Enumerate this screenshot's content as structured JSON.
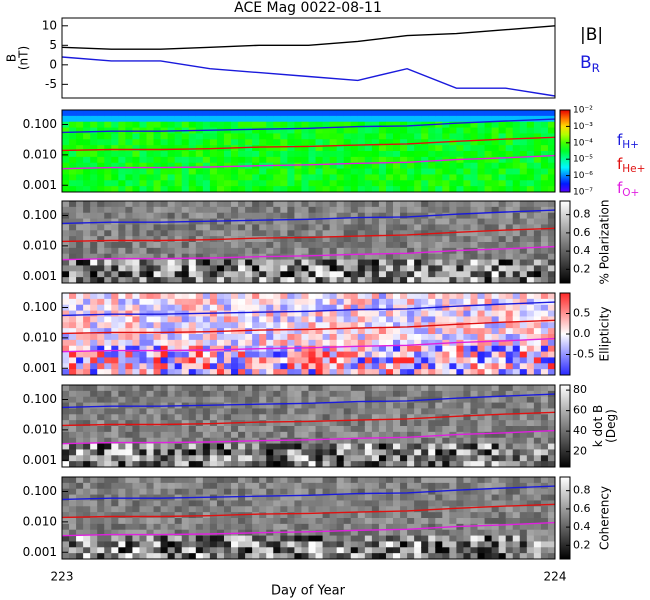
{
  "title": "ACE Mag 0022-08-11",
  "xlabel": "Day of Year",
  "chart_data": [
    {
      "type": "line",
      "ylabel": [
        "B",
        "(nT)"
      ],
      "x": [
        223,
        223.1,
        223.2,
        223.3,
        223.4,
        223.5,
        223.6,
        223.7,
        223.8,
        223.9,
        224
      ],
      "xlim": [
        223,
        224
      ],
      "xticks": [
        223,
        224
      ],
      "ylim": [
        -8.5,
        12
      ],
      "yticks": [
        -5,
        0,
        5,
        10
      ],
      "series": [
        {
          "name": "|B|",
          "color": "#000000",
          "values": [
            4.5,
            4,
            4,
            4.5,
            5,
            5,
            6,
            7.5,
            8,
            9,
            10
          ]
        },
        {
          "name": "B",
          "name_sub": "R",
          "color": "#1a1adc",
          "values": [
            2,
            1,
            1,
            -1,
            -2,
            -3,
            -4,
            -1,
            -6,
            -6,
            -8
          ]
        }
      ]
    },
    {
      "type": "spectrogram",
      "colormap": "rainbow",
      "x": [
        223,
        223.1,
        223.2,
        223.3,
        223.4,
        223.5,
        223.6,
        223.7,
        223.8,
        223.9,
        224
      ],
      "xlim": [
        223,
        224
      ],
      "log_y": true,
      "ylim": [
        0.0006,
        0.3
      ],
      "yticks": [
        {
          "value": 0.001,
          "label": "0.001"
        },
        {
          "value": 0.01,
          "label": "0.010"
        },
        {
          "value": 0.1,
          "label": "0.100"
        }
      ],
      "clim": [
        1e-07,
        0.01
      ],
      "log_c": true,
      "cticks": [
        {
          "value": 1e-07,
          "label": "10⁻⁷"
        },
        {
          "value": 1e-06,
          "label": "10⁻⁶"
        },
        {
          "value": 1e-05,
          "label": "10⁻⁵"
        },
        {
          "value": 0.0001,
          "label": "10⁻⁴"
        },
        {
          "value": 0.001,
          "label": "10⁻³"
        },
        {
          "value": 0.01,
          "label": "10⁻²"
        }
      ],
      "series": [
        {
          "name": "f",
          "name_sub": "H+",
          "color": "#1a1adc",
          "values": [
            0.055,
            0.06,
            0.06,
            0.065,
            0.07,
            0.075,
            0.085,
            0.09,
            0.11,
            0.13,
            0.15
          ]
        },
        {
          "name": "f",
          "name_sub": "He+",
          "color": "#e01010",
          "values": [
            0.014,
            0.015,
            0.015,
            0.016,
            0.018,
            0.019,
            0.021,
            0.023,
            0.028,
            0.033,
            0.038
          ]
        },
        {
          "name": "f",
          "name_sub": "O+",
          "color": "#e020e0",
          "values": [
            0.0035,
            0.0038,
            0.0038,
            0.004,
            0.0044,
            0.0047,
            0.0053,
            0.0057,
            0.007,
            0.008,
            0.0095
          ]
        }
      ]
    },
    {
      "type": "spectrogram",
      "colormap": "gray",
      "clabel": [
        "% Polarization"
      ],
      "x": [
        223,
        223.1,
        223.2,
        223.3,
        223.4,
        223.5,
        223.6,
        223.7,
        223.8,
        223.9,
        224
      ],
      "xlim": [
        223,
        224
      ],
      "log_y": true,
      "ylim": [
        0.0006,
        0.3
      ],
      "yticks": [
        {
          "value": 0.001,
          "label": "0.001"
        },
        {
          "value": 0.01,
          "label": "0.010"
        },
        {
          "value": 0.1,
          "label": "0.100"
        }
      ],
      "clim": [
        0.05,
        0.95
      ],
      "cticks": [
        0.2,
        0.4,
        0.6,
        0.8
      ],
      "series": [
        {
          "color": "#1a1adc",
          "values": [
            0.055,
            0.06,
            0.06,
            0.065,
            0.07,
            0.075,
            0.085,
            0.09,
            0.11,
            0.13,
            0.15
          ]
        },
        {
          "color": "#e01010",
          "values": [
            0.014,
            0.015,
            0.015,
            0.016,
            0.018,
            0.019,
            0.021,
            0.023,
            0.028,
            0.033,
            0.038
          ]
        },
        {
          "color": "#e020e0",
          "values": [
            0.0035,
            0.0038,
            0.0038,
            0.004,
            0.0044,
            0.0047,
            0.0053,
            0.0057,
            0.007,
            0.008,
            0.0095
          ]
        }
      ]
    },
    {
      "type": "spectrogram",
      "colormap": "bwr",
      "clabel": [
        "Ellipticity"
      ],
      "x": [
        223,
        223.1,
        223.2,
        223.3,
        223.4,
        223.5,
        223.6,
        223.7,
        223.8,
        223.9,
        224
      ],
      "xlim": [
        223,
        224
      ],
      "log_y": true,
      "ylim": [
        0.0006,
        0.3
      ],
      "yticks": [
        {
          "value": 0.001,
          "label": "0.001"
        },
        {
          "value": 0.01,
          "label": "0.010"
        },
        {
          "value": 0.1,
          "label": "0.100"
        }
      ],
      "clim": [
        -1,
        1
      ],
      "cticks": [
        -0.5,
        {
          "value": 0,
          "label": "0.0"
        },
        0.5
      ],
      "series": [
        {
          "color": "#1a1adc",
          "values": [
            0.055,
            0.06,
            0.06,
            0.065,
            0.07,
            0.075,
            0.085,
            0.09,
            0.11,
            0.13,
            0.15
          ]
        },
        {
          "color": "#e01010",
          "values": [
            0.014,
            0.015,
            0.015,
            0.016,
            0.018,
            0.019,
            0.021,
            0.023,
            0.028,
            0.033,
            0.038
          ]
        },
        {
          "color": "#e020e0",
          "values": [
            0.0035,
            0.0038,
            0.0038,
            0.004,
            0.0044,
            0.0047,
            0.0053,
            0.0057,
            0.007,
            0.008,
            0.0095
          ]
        }
      ]
    },
    {
      "type": "spectrogram",
      "colormap": "gray",
      "clabel": [
        "k dot B",
        "(Deg)"
      ],
      "x": [
        223,
        223.1,
        223.2,
        223.3,
        223.4,
        223.5,
        223.6,
        223.7,
        223.8,
        223.9,
        224
      ],
      "xlim": [
        223,
        224
      ],
      "log_y": true,
      "ylim": [
        0.0006,
        0.3
      ],
      "yticks": [
        {
          "value": 0.001,
          "label": "0.001"
        },
        {
          "value": 0.01,
          "label": "0.010"
        },
        {
          "value": 0.1,
          "label": "0.100"
        }
      ],
      "clim": [
        5,
        85
      ],
      "cticks": [
        20,
        40,
        60,
        80
      ],
      "series": [
        {
          "color": "#1a1adc",
          "values": [
            0.055,
            0.06,
            0.06,
            0.065,
            0.07,
            0.075,
            0.085,
            0.09,
            0.11,
            0.13,
            0.15
          ]
        },
        {
          "color": "#e01010",
          "values": [
            0.014,
            0.015,
            0.015,
            0.016,
            0.018,
            0.019,
            0.021,
            0.023,
            0.028,
            0.033,
            0.038
          ]
        },
        {
          "color": "#e020e0",
          "values": [
            0.0035,
            0.0038,
            0.0038,
            0.004,
            0.0044,
            0.0047,
            0.0053,
            0.0057,
            0.007,
            0.008,
            0.0095
          ]
        }
      ]
    },
    {
      "type": "spectrogram",
      "colormap": "gray",
      "clabel": [
        "Coherency"
      ],
      "x": [
        223,
        223.1,
        223.2,
        223.3,
        223.4,
        223.5,
        223.6,
        223.7,
        223.8,
        223.9,
        224
      ],
      "xlim": [
        223,
        224
      ],
      "log_y": true,
      "ylim": [
        0.0006,
        0.3
      ],
      "yticks": [
        {
          "value": 0.001,
          "label": "0.001"
        },
        {
          "value": 0.01,
          "label": "0.010"
        },
        {
          "value": 0.1,
          "label": "0.100"
        }
      ],
      "clim": [
        0.05,
        0.95
      ],
      "cticks": [
        0.2,
        0.4,
        0.6,
        0.8
      ],
      "series": [
        {
          "color": "#1a1adc",
          "values": [
            0.055,
            0.06,
            0.06,
            0.065,
            0.07,
            0.075,
            0.085,
            0.09,
            0.11,
            0.13,
            0.15
          ]
        },
        {
          "color": "#e01010",
          "values": [
            0.014,
            0.015,
            0.015,
            0.016,
            0.018,
            0.019,
            0.021,
            0.023,
            0.028,
            0.033,
            0.038
          ]
        },
        {
          "color": "#e020e0",
          "values": [
            0.0035,
            0.0038,
            0.0038,
            0.004,
            0.0044,
            0.0047,
            0.0053,
            0.0057,
            0.007,
            0.008,
            0.0095
          ]
        }
      ]
    }
  ]
}
